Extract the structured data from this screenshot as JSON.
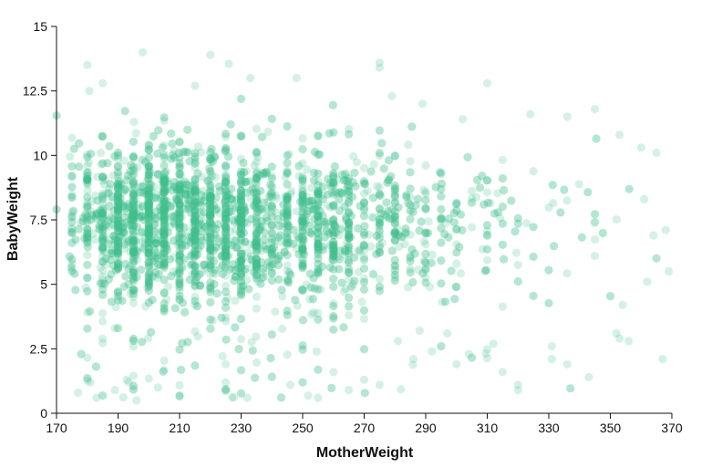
{
  "chart_data": {
    "type": "scatter",
    "title": "",
    "xlabel": "MotherWeight",
    "ylabel": "BabyWeight",
    "xlim": [
      170,
      370
    ],
    "ylim": [
      0,
      15
    ],
    "grid": false,
    "x_ticks": [
      170,
      190,
      210,
      230,
      250,
      270,
      290,
      310,
      330,
      350,
      370
    ],
    "x_tick_labels": [
      "170",
      "190",
      "210",
      "230",
      "250",
      "270",
      "290",
      "310",
      "330",
      "350",
      "370"
    ],
    "y_ticks": [
      0,
      2.5,
      5,
      7.5,
      10,
      12.5,
      15
    ],
    "y_tick_labels": [
      "0",
      "2.5",
      "5",
      "7.5",
      "10",
      "12.5",
      "15"
    ],
    "point_color": "#3fbf8f",
    "point_opacity": 0.22,
    "points": [
      [
        198,
        14.0
      ],
      [
        220,
        13.9
      ],
      [
        180,
        13.5
      ],
      [
        226,
        13.55
      ],
      [
        275,
        13.6
      ],
      [
        275,
        13.4
      ],
      [
        185,
        12.8
      ],
      [
        310,
        12.8
      ],
      [
        233,
        13.0
      ],
      [
        248,
        13.0
      ],
      [
        215,
        12.7
      ],
      [
        345,
        11.8
      ],
      [
        365,
        10.1
      ],
      [
        368,
        7.1
      ],
      [
        369,
        5.5
      ],
      [
        367,
        2.1
      ],
      [
        352,
        3.1
      ],
      [
        356,
        2.8
      ],
      [
        343,
        1.4
      ],
      [
        336,
        1.9
      ],
      [
        320,
        1.1
      ],
      [
        320,
        0.9
      ],
      [
        315,
        1.6
      ],
      [
        300,
        1.9
      ],
      [
        292,
        2.4
      ],
      [
        288,
        3.2
      ],
      [
        275,
        1.1
      ],
      [
        255,
        0.6
      ],
      [
        265,
        0.9
      ],
      [
        232,
        0.6
      ],
      [
        183,
        0.6
      ],
      [
        196,
        0.5
      ],
      [
        181,
        1.2
      ],
      [
        177,
        0.8
      ],
      [
        289,
        12.0
      ],
      [
        279,
        12.3
      ],
      [
        302,
        11.4
      ],
      [
        324,
        11.6
      ],
      [
        336,
        11.5
      ],
      [
        353,
        10.8
      ],
      [
        360,
        10.3
      ],
      [
        361,
        8.3
      ],
      [
        364,
        6.9
      ],
      [
        362,
        5.1
      ],
      [
        354,
        4.2
      ],
      [
        353,
        2.9
      ],
      [
        331,
        2.6
      ],
      [
        331,
        2.1
      ],
      [
        312,
        2.7
      ],
      [
        304,
        2.3
      ],
      [
        297,
        3.1
      ],
      [
        286,
        2.1
      ],
      [
        281,
        2.8
      ],
      [
        270,
        1.3
      ],
      [
        260,
        1.6
      ],
      [
        246,
        1.1
      ],
      [
        225,
        1.2
      ],
      [
        210,
        0.7
      ],
      [
        203,
        1.0
      ],
      [
        189,
        0.9
      ]
    ]
  }
}
